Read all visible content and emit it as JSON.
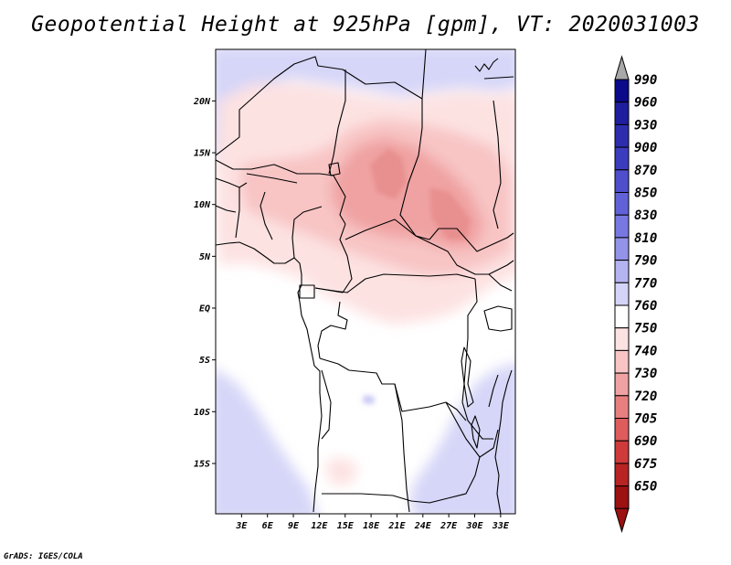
{
  "title": "Geopotential Height at 925hPa [gpm], VT: 2020031003",
  "footer": "GrADS: IGES/COLA",
  "map": {
    "lat_labels": [
      "20N",
      "15N",
      "10N",
      "5N",
      "EQ",
      "5S",
      "10S",
      "15S"
    ],
    "lon_labels": [
      "3E",
      "6E",
      "9E",
      "12E",
      "15E",
      "18E",
      "21E",
      "24E",
      "27E",
      "30E",
      "33E"
    ],
    "lat_values": [
      20,
      15,
      10,
      5,
      0,
      -5,
      -10,
      -15
    ],
    "lon_values": [
      3,
      6,
      9,
      12,
      15,
      18,
      21,
      24,
      27,
      30,
      33
    ]
  },
  "colorbar": {
    "labels": [
      "990",
      "960",
      "930",
      "900",
      "870",
      "850",
      "830",
      "810",
      "790",
      "770",
      "760",
      "750",
      "740",
      "730",
      "720",
      "705",
      "690",
      "675",
      "650"
    ],
    "colors": [
      "#0a0a8a",
      "#1e1e9e",
      "#2d2dae",
      "#3c3cbe",
      "#4f4fcc",
      "#6262d8",
      "#7878e2",
      "#9393ea",
      "#b4b4f0",
      "#d4d4f8",
      "#ffffff",
      "#fde2e2",
      "#f8c4c4",
      "#f0a2a2",
      "#e87f7f",
      "#de5c5c",
      "#cf3a3a",
      "#b82323",
      "#9c1111"
    ],
    "top_arrow_color": "#a8a8a8",
    "bottom_arrow_color": "#9c1111"
  }
}
